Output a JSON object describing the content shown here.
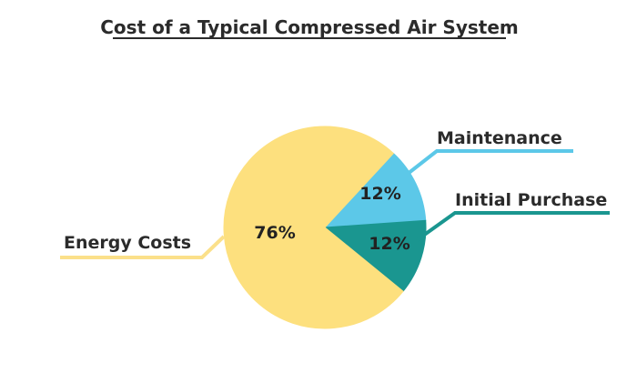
{
  "chart_data": {
    "type": "pie",
    "title": "Cost of a Typical Compressed Air System",
    "slices": [
      {
        "label": "Maintenance",
        "value": 12,
        "display": "12%",
        "color": "#5cc8e8"
      },
      {
        "label": "Initial Purchase",
        "value": 12,
        "display": "12%",
        "color": "#1a9690"
      },
      {
        "label": "Energy Costs",
        "value": 76,
        "display": "76%",
        "color": "#fde07e"
      }
    ],
    "legend": "callouts"
  },
  "colors": {
    "energy_callout_line": "#fbe08a",
    "maintenance_callout_line": "#5cc8e8",
    "purchase_callout_line": "#1a9690",
    "title": "#2b2b2b"
  }
}
